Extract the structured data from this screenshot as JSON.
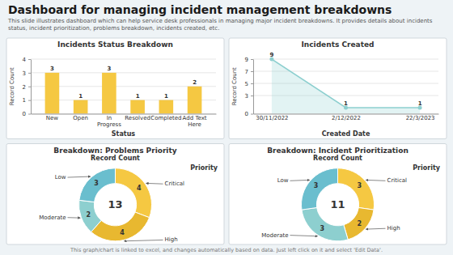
{
  "title": "Dashboard for managing incident management breakdowns",
  "subtitle": "This slide illustrates dashboard which can help service desk professionals in managing major incident breakdowns. It provides details about incidents status, incident prioritization, problems breakdown, incidents created, etc.",
  "footer": "This graph/chart is linked to excel, and changes automatically based on data. Just left click on it and select 'Edit Data'.",
  "chart_data": [
    {
      "type": "bar",
      "title": "Incidents Status Breakdown",
      "x_label": "Status",
      "y_label": "Record Count",
      "categories": [
        "New",
        "Open",
        "In Progress",
        "Resolved",
        "Completed",
        "Add Text Here"
      ],
      "values": [
        3,
        1,
        3,
        1,
        1,
        2
      ],
      "color": "#f5c842",
      "ylim": [
        0,
        4
      ],
      "yticks": [
        0,
        1,
        2,
        3,
        4
      ],
      "grid": true,
      "data_labels": true
    },
    {
      "type": "line",
      "title": "Incidents Created",
      "x_label": "Created Date",
      "y_label": "Record Count",
      "categories": [
        "30/11/2022",
        "2/12/2022",
        "22/3/2023"
      ],
      "values": [
        9,
        1,
        1
      ],
      "color": "#8dcfcf",
      "marker": "circle",
      "ylim": [
        0,
        9
      ],
      "yticks": [
        0,
        3,
        5,
        7,
        9
      ],
      "grid": true,
      "data_labels": true
    },
    {
      "type": "donut",
      "title": "Breakdown: Problems Priority",
      "subtitle": "Record Count",
      "legend_title": "Priority",
      "categories": [
        "Critical",
        "High",
        "Moderate",
        "Low"
      ],
      "values": [
        4,
        4,
        2,
        3
      ],
      "colors": [
        "#f5c842",
        "#e8b830",
        "#8dcfcf",
        "#6abece"
      ],
      "total": 13,
      "data_labels": true
    },
    {
      "type": "donut",
      "title": "Breakdown: Incident Prioritization",
      "subtitle": "Record Count",
      "legend_title": "Priority",
      "categories": [
        "Critical",
        "High",
        "Moderate",
        "Low"
      ],
      "values": [
        3,
        2,
        3,
        3
      ],
      "colors": [
        "#f5c842",
        "#e8b830",
        "#8dcfcf",
        "#6abece"
      ],
      "total": 11,
      "data_labels": true
    }
  ]
}
